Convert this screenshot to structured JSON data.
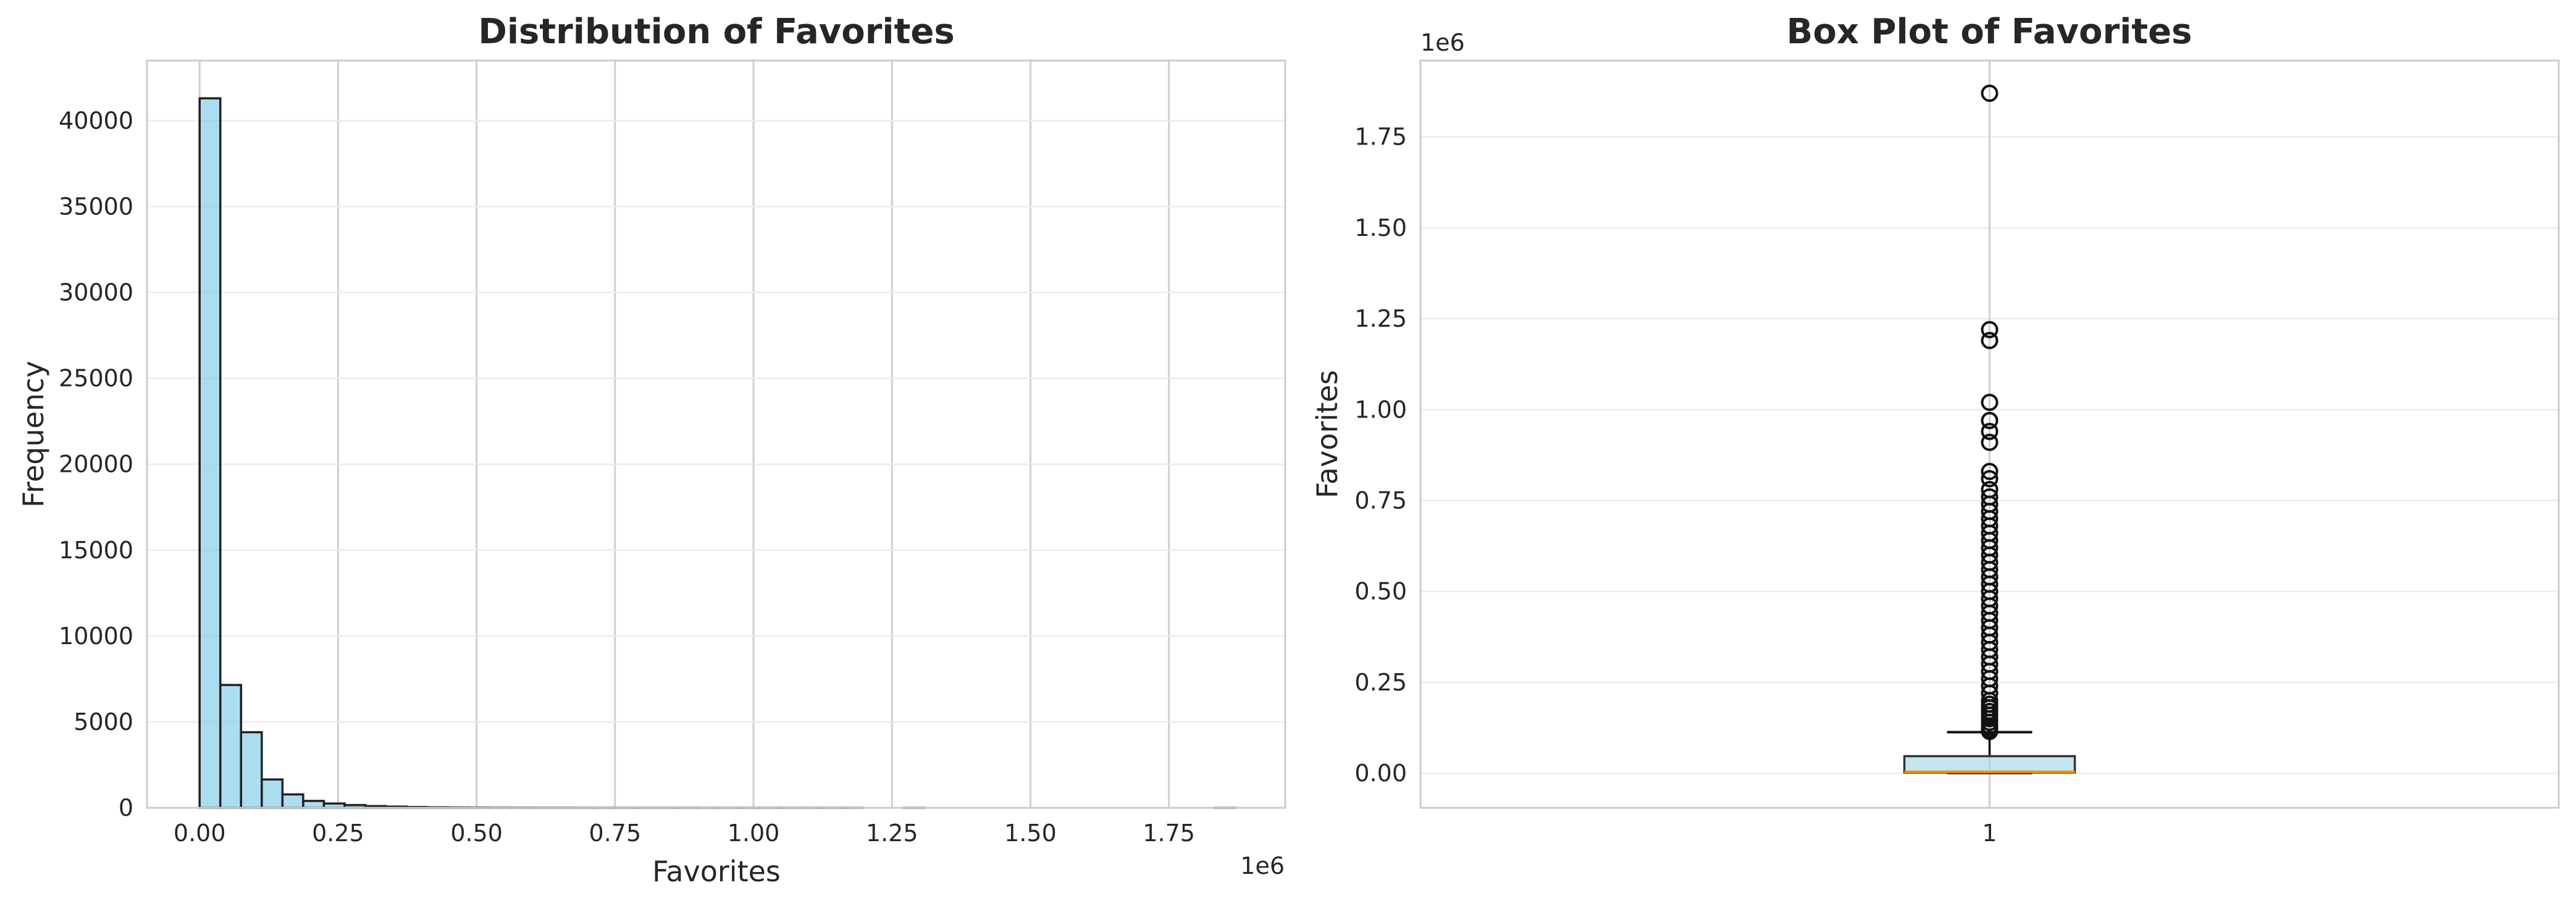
{
  "chart_data": [
    {
      "type": "histogram",
      "title": "Distribution of Favorites",
      "xlabel": "Favorites",
      "ylabel": "Frequency",
      "x_offset_label": "1e6",
      "xlim": [
        -0.095,
        1.96
      ],
      "ylim": [
        0,
        43500
      ],
      "x_ticks": [
        0.0,
        0.25,
        0.5,
        0.75,
        1.0,
        1.25,
        1.5,
        1.75
      ],
      "x_tick_labels": [
        "0.00",
        "0.25",
        "0.50",
        "0.75",
        "1.00",
        "1.25",
        "1.50",
        "1.75"
      ],
      "y_ticks": [
        0,
        5000,
        10000,
        15000,
        20000,
        25000,
        30000,
        35000,
        40000
      ],
      "y_tick_labels": [
        "0",
        "5000",
        "10000",
        "15000",
        "20000",
        "25000",
        "30000",
        "35000",
        "40000"
      ],
      "bins": 50,
      "bin_start": 0.0,
      "bin_width": 0.0374,
      "values": [
        41300,
        7150,
        4400,
        1650,
        780,
        400,
        250,
        160,
        100,
        70,
        45,
        30,
        20,
        15,
        10,
        8,
        6,
        5,
        4,
        3,
        3,
        2,
        2,
        2,
        1,
        1,
        1,
        1,
        1,
        1,
        1,
        1,
        0,
        0,
        1,
        0,
        0,
        0,
        0,
        0,
        0,
        0,
        0,
        0,
        0,
        0,
        0,
        0,
        0,
        1
      ],
      "bar_color": "#87ceeb",
      "edge_color": "#222222",
      "grid": "vertical + horizontal"
    },
    {
      "type": "box",
      "title": "Box Plot of Favorites",
      "xlabel": "",
      "ylabel": "Favorites",
      "y_offset_label": "1e6",
      "ylim": [
        -0.095,
        1.96
      ],
      "y_ticks": [
        0.0,
        0.25,
        0.5,
        0.75,
        1.0,
        1.25,
        1.5,
        1.75
      ],
      "y_tick_labels": [
        "0.00",
        "0.25",
        "0.50",
        "0.75",
        "1.00",
        "1.25",
        "1.50",
        "1.75"
      ],
      "x_tick_labels": [
        "1"
      ],
      "box": {
        "min": 0.0,
        "q1": 0.002,
        "median": 0.004,
        "q3": 0.047,
        "whisker_high": 0.113
      },
      "outliers": [
        1.87,
        1.22,
        1.19,
        1.02,
        0.97,
        0.94,
        0.91,
        0.83,
        0.81,
        0.78,
        0.76,
        0.74,
        0.72,
        0.7,
        0.68,
        0.66,
        0.64,
        0.62,
        0.6,
        0.58,
        0.56,
        0.54,
        0.52,
        0.5,
        0.48,
        0.46,
        0.44,
        0.42,
        0.4,
        0.38,
        0.36,
        0.34,
        0.32,
        0.3,
        0.28,
        0.26,
        0.24,
        0.22,
        0.2,
        0.19,
        0.18,
        0.17,
        0.16,
        0.15,
        0.14,
        0.13,
        0.125,
        0.12,
        0.115
      ],
      "box_color": "#add8e6",
      "median_color": "#ff8c00",
      "grid": "horizontal"
    }
  ]
}
